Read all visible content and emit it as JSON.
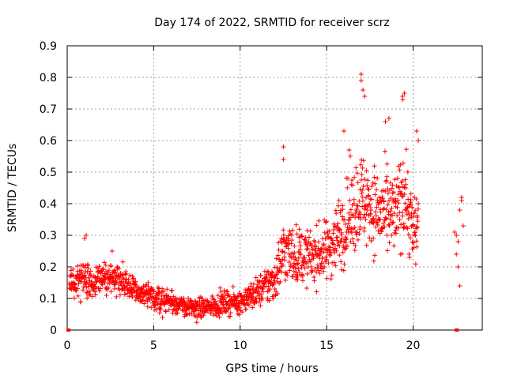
{
  "chart_data": {
    "type": "scatter",
    "title": "Day 174 of 2022, SRMTID for receiver scrz",
    "xlabel": "GPS time / hours",
    "ylabel": "SRMTID / TECUs",
    "xlim": [
      0,
      24
    ],
    "ylim": [
      0,
      0.9
    ],
    "xticks": [
      0,
      5,
      10,
      15,
      20
    ],
    "yticks": [
      0,
      0.1,
      0.2,
      0.3,
      0.4,
      0.5,
      0.6,
      0.7,
      0.8,
      0.9
    ],
    "grid": true,
    "marker": "+",
    "color": "#ff0000",
    "segments": [
      [
        0.1,
        0.14,
        0.05
      ],
      [
        1.0,
        0.16,
        0.06
      ],
      [
        2.0,
        0.16,
        0.05
      ],
      [
        3.0,
        0.17,
        0.05
      ],
      [
        4.0,
        0.12,
        0.04
      ],
      [
        5.0,
        0.1,
        0.04
      ],
      [
        6.0,
        0.09,
        0.035
      ],
      [
        7.0,
        0.07,
        0.03
      ],
      [
        8.0,
        0.07,
        0.03
      ],
      [
        9.0,
        0.085,
        0.035
      ],
      [
        10.0,
        0.09,
        0.035
      ],
      [
        11.0,
        0.12,
        0.045
      ],
      [
        12.0,
        0.16,
        0.07
      ],
      [
        12.5,
        0.25,
        0.1
      ],
      [
        13.0,
        0.24,
        0.09
      ],
      [
        14.0,
        0.23,
        0.08
      ],
      [
        15.0,
        0.25,
        0.09
      ],
      [
        16.0,
        0.33,
        0.12
      ],
      [
        17.0,
        0.42,
        0.14
      ],
      [
        18.0,
        0.37,
        0.13
      ],
      [
        19.0,
        0.36,
        0.13
      ],
      [
        19.5,
        0.45,
        0.15
      ],
      [
        20.0,
        0.3,
        0.12
      ],
      [
        20.3,
        0.35,
        0.12
      ]
    ],
    "isolated_points": [
      [
        1.0,
        0.29
      ],
      [
        1.1,
        0.3
      ],
      [
        2.6,
        0.25
      ],
      [
        12.5,
        0.58
      ],
      [
        12.5,
        0.54
      ],
      [
        16.0,
        0.63
      ],
      [
        16.3,
        0.57
      ],
      [
        17.0,
        0.79
      ],
      [
        17.0,
        0.81
      ],
      [
        17.1,
        0.76
      ],
      [
        17.2,
        0.74
      ],
      [
        18.4,
        0.66
      ],
      [
        18.6,
        0.67
      ],
      [
        19.4,
        0.74
      ],
      [
        19.5,
        0.75
      ],
      [
        19.4,
        0.73
      ],
      [
        20.2,
        0.63
      ],
      [
        20.3,
        0.6
      ],
      [
        22.4,
        0.31
      ],
      [
        22.5,
        0.24
      ],
      [
        22.6,
        0.2
      ],
      [
        22.7,
        0.38
      ],
      [
        22.8,
        0.42
      ],
      [
        22.8,
        0.41
      ],
      [
        22.9,
        0.33
      ],
      [
        22.7,
        0.14
      ],
      [
        22.6,
        0.28
      ],
      [
        22.5,
        0.3
      ]
    ],
    "baseline_points": [
      [
        0.05,
        0.0
      ],
      [
        22.5,
        0.0
      ]
    ]
  }
}
